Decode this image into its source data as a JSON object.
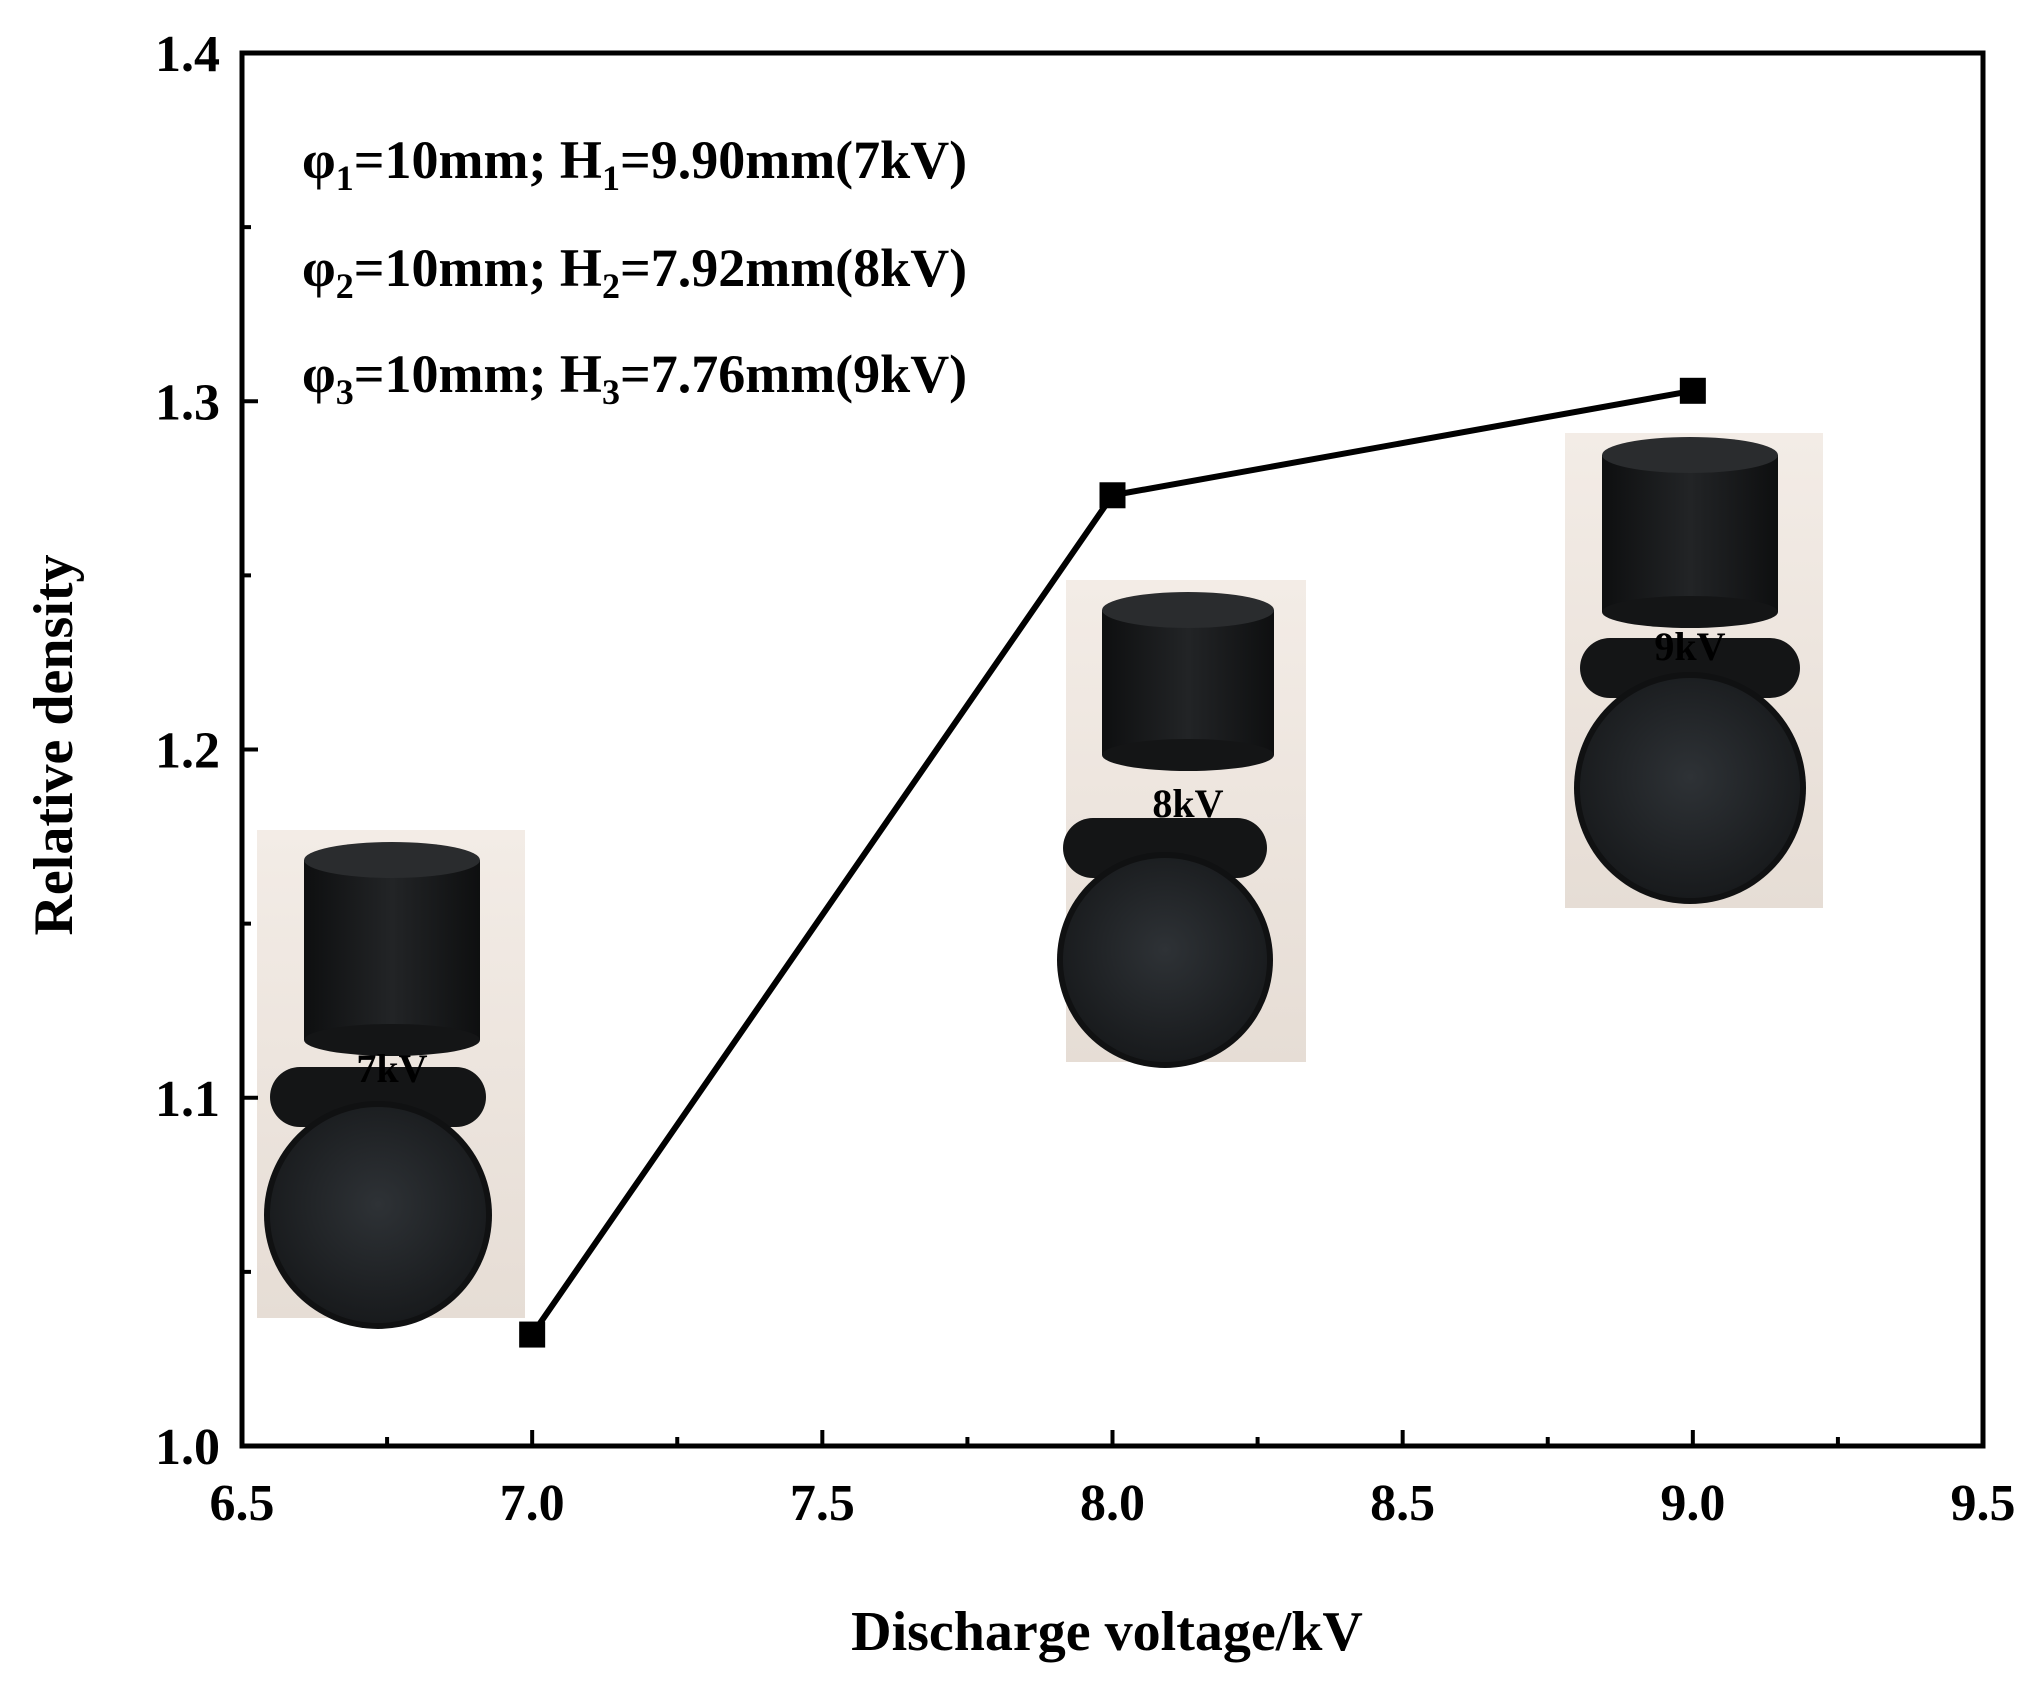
{
  "chart_data": {
    "type": "line",
    "xlabel": "Discharge voltage/kV",
    "ylabel": "Relative density",
    "xlim": [
      6.5,
      9.5
    ],
    "ylim": [
      1.0,
      1.4
    ],
    "x_ticks": [
      "6.5",
      "7.0",
      "7.5",
      "8.0",
      "8.5",
      "9.0",
      "9.5"
    ],
    "y_ticks": [
      "1.0",
      "1.1",
      "1.2",
      "1.3",
      "1.4"
    ],
    "grid": false,
    "series": [
      {
        "marker": "square",
        "color": "#000000",
        "points": [
          {
            "x": 7.0,
            "y": 1.032
          },
          {
            "x": 8.0,
            "y": 1.273
          },
          {
            "x": 9.0,
            "y": 1.303
          }
        ]
      }
    ],
    "annotations": [
      {
        "symbol": "φ",
        "sub1": "1",
        "mid": "=10mm; H",
        "sub2": "1",
        "tail": "=9.90mm(7kV)"
      },
      {
        "symbol": "φ",
        "sub1": "2",
        "mid": "=10mm; H",
        "sub2": "2",
        "tail": "=7.92mm(8kV)"
      },
      {
        "symbol": "φ",
        "sub1": "3",
        "mid": "=10mm; H",
        "sub2": "3",
        "tail": "=7.76mm(9kV)"
      }
    ],
    "sample_photos": [
      {
        "label": "7kV",
        "x": 7.0
      },
      {
        "label": "8kV",
        "x": 8.0
      },
      {
        "label": "9kV",
        "x": 9.0
      }
    ]
  }
}
